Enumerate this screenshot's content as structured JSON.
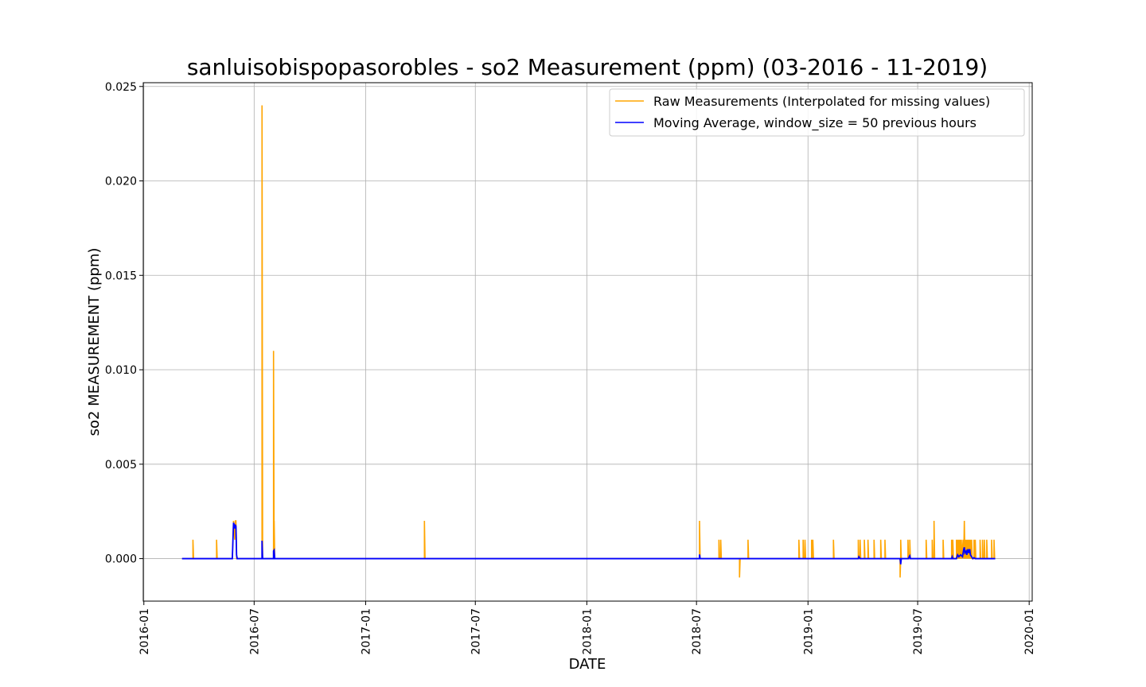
{
  "chart_data": {
    "type": "line",
    "title": "sanluisobispopasorobles - so2 Measurement (ppm) (03-2016 - 11-2019)",
    "xlabel": "DATE",
    "ylabel": "so2 MEASUREMENT (ppm)",
    "xlim": [
      "2015-12-31",
      "2020-01-06"
    ],
    "ylim": [
      -0.00225,
      0.0252
    ],
    "grid": true,
    "legend_position": "top-right",
    "x_ticks": [
      "2016-01",
      "2016-07",
      "2017-01",
      "2017-07",
      "2018-01",
      "2018-07",
      "2019-01",
      "2019-07",
      "2020-01"
    ],
    "y_ticks": [
      0.0,
      0.005,
      0.01,
      0.015,
      0.02,
      0.025
    ],
    "y_tick_labels": [
      "0.000",
      "0.005",
      "0.010",
      "0.015",
      "0.020",
      "0.025"
    ],
    "series": [
      {
        "name": "Raw Measurements (Interpolated for missing values)",
        "color": "#ffa500",
        "points": [
          [
            "2016-03-04",
            0
          ],
          [
            "2016-03-22",
            0
          ],
          [
            "2016-03-22",
            0.001
          ],
          [
            "2016-03-23",
            0
          ],
          [
            "2016-04-30",
            0
          ],
          [
            "2016-04-30",
            0.001
          ],
          [
            "2016-05-01",
            0
          ],
          [
            "2016-05-26",
            0
          ],
          [
            "2016-05-28",
            0.002
          ],
          [
            "2016-05-30",
            0.001
          ],
          [
            "2016-05-31",
            0.002
          ],
          [
            "2016-06-01",
            0.002
          ],
          [
            "2016-06-02",
            0
          ],
          [
            "2016-07-14",
            0
          ],
          [
            "2016-07-14",
            0.024
          ],
          [
            "2016-07-15",
            0
          ],
          [
            "2016-08-02",
            0
          ],
          [
            "2016-08-02",
            0.011
          ],
          [
            "2016-08-03",
            0
          ],
          [
            "2016-08-03",
            0.002
          ],
          [
            "2016-08-04",
            0
          ],
          [
            "2017-04-08",
            0
          ],
          [
            "2017-04-08",
            0.002
          ],
          [
            "2017-04-09",
            0
          ],
          [
            "2018-07-06",
            0
          ],
          [
            "2018-07-06",
            0.002
          ],
          [
            "2018-07-07",
            0
          ],
          [
            "2018-08-07",
            0
          ],
          [
            "2018-08-07",
            0.001
          ],
          [
            "2018-08-08",
            0
          ],
          [
            "2018-08-10",
            0
          ],
          [
            "2018-08-10",
            0.001
          ],
          [
            "2018-08-11",
            0
          ],
          [
            "2018-09-10",
            0
          ],
          [
            "2018-09-10",
            -0.001
          ],
          [
            "2018-09-11",
            0
          ],
          [
            "2018-09-24",
            0
          ],
          [
            "2018-09-24",
            0.001
          ],
          [
            "2018-09-25",
            0
          ],
          [
            "2018-12-17",
            0
          ],
          [
            "2018-12-17",
            0.001
          ],
          [
            "2018-12-18",
            0
          ],
          [
            "2018-12-24",
            0
          ],
          [
            "2018-12-24",
            0.001
          ],
          [
            "2018-12-25",
            0
          ],
          [
            "2018-12-27",
            0
          ],
          [
            "2018-12-27",
            0.001
          ],
          [
            "2018-12-28",
            0
          ],
          [
            "2019-01-07",
            0
          ],
          [
            "2019-01-07",
            0.001
          ],
          [
            "2019-01-08",
            0
          ],
          [
            "2019-01-09",
            0
          ],
          [
            "2019-01-09",
            0.001
          ],
          [
            "2019-01-10",
            0
          ],
          [
            "2019-02-12",
            0
          ],
          [
            "2019-02-12",
            0.001
          ],
          [
            "2019-02-13",
            0
          ],
          [
            "2019-03-25",
            0
          ],
          [
            "2019-03-25",
            0.001
          ],
          [
            "2019-03-26",
            0
          ],
          [
            "2019-03-28",
            0
          ],
          [
            "2019-03-28",
            0.001
          ],
          [
            "2019-03-29",
            0
          ],
          [
            "2019-04-04",
            0
          ],
          [
            "2019-04-04",
            0.001
          ],
          [
            "2019-04-05",
            0
          ],
          [
            "2019-04-10",
            0
          ],
          [
            "2019-04-10",
            0.001
          ],
          [
            "2019-04-11",
            0
          ],
          [
            "2019-04-20",
            0
          ],
          [
            "2019-04-20",
            0.001
          ],
          [
            "2019-04-21",
            0
          ],
          [
            "2019-05-01",
            0
          ],
          [
            "2019-05-01",
            0.001
          ],
          [
            "2019-05-02",
            0
          ],
          [
            "2019-05-08",
            0
          ],
          [
            "2019-05-08",
            0.001
          ],
          [
            "2019-05-09",
            0
          ],
          [
            "2019-06-02",
            0
          ],
          [
            "2019-06-02",
            -0.001
          ],
          [
            "2019-06-03",
            0
          ],
          [
            "2019-06-03",
            0.001
          ],
          [
            "2019-06-04",
            0
          ],
          [
            "2019-06-15",
            0
          ],
          [
            "2019-06-15",
            0.001
          ],
          [
            "2019-06-16",
            0
          ],
          [
            "2019-06-18",
            0
          ],
          [
            "2019-06-18",
            0.001
          ],
          [
            "2019-06-19",
            0
          ],
          [
            "2019-07-15",
            0
          ],
          [
            "2019-07-15",
            0.001
          ],
          [
            "2019-07-16",
            0
          ],
          [
            "2019-07-25",
            0
          ],
          [
            "2019-07-25",
            0.001
          ],
          [
            "2019-07-26",
            0
          ],
          [
            "2019-07-28",
            0
          ],
          [
            "2019-07-28",
            0.002
          ],
          [
            "2019-07-29",
            0
          ],
          [
            "2019-08-12",
            0
          ],
          [
            "2019-08-12",
            0.001
          ],
          [
            "2019-08-13",
            0
          ],
          [
            "2019-08-26",
            0
          ],
          [
            "2019-08-26",
            0.001
          ],
          [
            "2019-08-27",
            0
          ],
          [
            "2019-08-28",
            0
          ],
          [
            "2019-08-28",
            0.001
          ],
          [
            "2019-08-29",
            0
          ],
          [
            "2019-09-03",
            0
          ],
          [
            "2019-09-03",
            0.001
          ],
          [
            "2019-09-04",
            0
          ],
          [
            "2019-09-05",
            0.001
          ],
          [
            "2019-09-06",
            0
          ],
          [
            "2019-09-07",
            0.001
          ],
          [
            "2019-09-08",
            0
          ],
          [
            "2019-09-09",
            0.001
          ],
          [
            "2019-09-10",
            0
          ],
          [
            "2019-09-11",
            0.001
          ],
          [
            "2019-09-12",
            0
          ],
          [
            "2019-09-14",
            0.001
          ],
          [
            "2019-09-15",
            0
          ],
          [
            "2019-09-16",
            0.002
          ],
          [
            "2019-09-17",
            0
          ],
          [
            "2019-09-18",
            0.001
          ],
          [
            "2019-09-19",
            0
          ],
          [
            "2019-09-20",
            0.001
          ],
          [
            "2019-09-21",
            0
          ],
          [
            "2019-09-22",
            0.001
          ],
          [
            "2019-09-23",
            0
          ],
          [
            "2019-09-24",
            0.001
          ],
          [
            "2019-09-25",
            0
          ],
          [
            "2019-09-26",
            0.001
          ],
          [
            "2019-09-27",
            0
          ],
          [
            "2019-09-28",
            0.001
          ],
          [
            "2019-09-29",
            0
          ],
          [
            "2019-10-02",
            0
          ],
          [
            "2019-10-02",
            0.001
          ],
          [
            "2019-10-03",
            0
          ],
          [
            "2019-10-04",
            0.001
          ],
          [
            "2019-10-05",
            0
          ],
          [
            "2019-10-12",
            0
          ],
          [
            "2019-10-12",
            0.001
          ],
          [
            "2019-10-13",
            0
          ],
          [
            "2019-10-16",
            0
          ],
          [
            "2019-10-16",
            0.001
          ],
          [
            "2019-10-17",
            0
          ],
          [
            "2019-10-19",
            0
          ],
          [
            "2019-10-19",
            0.001
          ],
          [
            "2019-10-20",
            0
          ],
          [
            "2019-10-23",
            0
          ],
          [
            "2019-10-23",
            0.001
          ],
          [
            "2019-10-24",
            0
          ],
          [
            "2019-10-31",
            0
          ],
          [
            "2019-10-31",
            0.001
          ],
          [
            "2019-11-01",
            0
          ],
          [
            "2019-11-04",
            0
          ],
          [
            "2019-11-04",
            0.001
          ],
          [
            "2019-11-05",
            0
          ],
          [
            "2019-11-06",
            0
          ]
        ]
      },
      {
        "name": "Moving Average, window_size = 50 previous hours",
        "color": "#0000ff",
        "points": [
          [
            "2016-03-04",
            0
          ],
          [
            "2016-05-26",
            0
          ],
          [
            "2016-05-28",
            0.0019
          ],
          [
            "2016-05-29",
            0.0018
          ],
          [
            "2016-05-30",
            0.0016
          ],
          [
            "2016-05-31",
            0.0018
          ],
          [
            "2016-06-01",
            0.0017
          ],
          [
            "2016-06-02",
            0.0002
          ],
          [
            "2016-06-03",
            0
          ],
          [
            "2016-07-14",
            0
          ],
          [
            "2016-07-14",
            0.00095
          ],
          [
            "2016-07-15",
            0
          ],
          [
            "2016-08-02",
            0
          ],
          [
            "2016-08-02",
            0.0004
          ],
          [
            "2016-08-03",
            0.00045
          ],
          [
            "2016-08-04",
            0
          ],
          [
            "2018-07-06",
            0
          ],
          [
            "2018-07-06",
            0.00022
          ],
          [
            "2018-07-07",
            0
          ],
          [
            "2019-03-25",
            0
          ],
          [
            "2019-03-26",
            0.0001
          ],
          [
            "2019-03-28",
            0
          ],
          [
            "2019-06-02",
            0
          ],
          [
            "2019-06-03",
            -0.0003
          ],
          [
            "2019-06-04",
            0
          ],
          [
            "2019-06-16",
            0
          ],
          [
            "2019-06-17",
            0.0001
          ],
          [
            "2019-06-18",
            0.00015
          ],
          [
            "2019-06-19",
            0
          ],
          [
            "2019-08-26",
            0
          ],
          [
            "2019-08-27",
            0.0001
          ],
          [
            "2019-08-28",
            0
          ],
          [
            "2019-09-03",
            0
          ],
          [
            "2019-09-05",
            0.0002
          ],
          [
            "2019-09-07",
            0.0001
          ],
          [
            "2019-09-10",
            0.0002
          ],
          [
            "2019-09-13",
            0.0001
          ],
          [
            "2019-09-15",
            0.0005
          ],
          [
            "2019-09-16",
            0.0006
          ],
          [
            "2019-09-17",
            0.0003
          ],
          [
            "2019-09-19",
            0.0004
          ],
          [
            "2019-09-20",
            0.0002
          ],
          [
            "2019-09-22",
            0.0005
          ],
          [
            "2019-09-23",
            0.0003
          ],
          [
            "2019-09-25",
            0.0005
          ],
          [
            "2019-09-26",
            0.0002
          ],
          [
            "2019-09-28",
            0.0001
          ],
          [
            "2019-09-30",
            0
          ],
          [
            "2019-10-02",
            5e-05
          ],
          [
            "2019-10-04",
            0
          ],
          [
            "2019-11-06",
            0
          ]
        ]
      }
    ]
  }
}
